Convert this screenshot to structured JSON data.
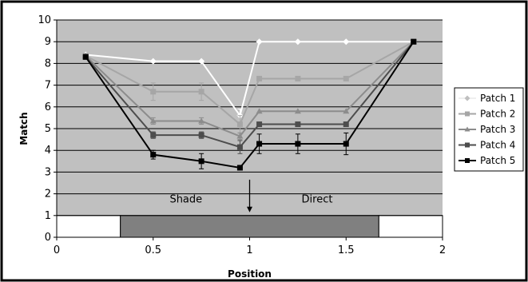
{
  "chart_data": {
    "type": "line",
    "title": "",
    "xlabel": "Position",
    "ylabel": "Match",
    "xlim": [
      0,
      2
    ],
    "ylim": [
      0,
      10
    ],
    "xticks": [
      0,
      0.5,
      1,
      1.5,
      2
    ],
    "xtick_labels": [
      "0",
      "0.5",
      "1",
      "1.5",
      "2"
    ],
    "yticks": [
      0,
      1,
      2,
      3,
      4,
      5,
      6,
      7,
      8,
      9,
      10
    ],
    "ytick_labels": [
      "0",
      "1",
      "2",
      "3",
      "4",
      "5",
      "6",
      "7",
      "8",
      "9",
      "10"
    ],
    "grid": true,
    "legend_position": "right",
    "series": [
      {
        "name": "Patch 1",
        "color": "#ffffff",
        "marker": "diamond",
        "points": [
          [
            0.15,
            8.4
          ],
          [
            0.5,
            8.1
          ],
          [
            0.75,
            8.1
          ],
          [
            0.95,
            5.6
          ],
          [
            1.05,
            9.0
          ],
          [
            1.25,
            9.0
          ],
          [
            1.5,
            9.0
          ],
          [
            1.85,
            9.0
          ]
        ],
        "errors": [
          0,
          0,
          0,
          0.3,
          0,
          0,
          0,
          0
        ]
      },
      {
        "name": "Patch 2",
        "color": "#a6a6a6",
        "marker": "square",
        "points": [
          [
            0.15,
            8.35
          ],
          [
            0.5,
            6.7
          ],
          [
            0.75,
            6.7
          ],
          [
            0.95,
            5.2
          ],
          [
            1.05,
            7.3
          ],
          [
            1.25,
            7.3
          ],
          [
            1.5,
            7.3
          ],
          [
            1.85,
            9.0
          ]
        ],
        "errors": [
          0,
          0.4,
          0.4,
          0.4,
          0,
          0,
          0,
          0
        ]
      },
      {
        "name": "Patch 3",
        "color": "#8c8c8c",
        "marker": "triangle",
        "points": [
          [
            0.15,
            8.35
          ],
          [
            0.5,
            5.35
          ],
          [
            0.75,
            5.35
          ],
          [
            0.95,
            4.65
          ],
          [
            1.05,
            5.8
          ],
          [
            1.25,
            5.8
          ],
          [
            1.5,
            5.8
          ],
          [
            1.85,
            9.0
          ]
        ],
        "errors": [
          0,
          0.15,
          0.15,
          0.15,
          0,
          0,
          0,
          0
        ]
      },
      {
        "name": "Patch 4",
        "color": "#4d4d4d",
        "marker": "square",
        "points": [
          [
            0.15,
            8.3
          ],
          [
            0.5,
            4.7
          ],
          [
            0.75,
            4.7
          ],
          [
            0.95,
            4.15
          ],
          [
            1.05,
            5.2
          ],
          [
            1.25,
            5.2
          ],
          [
            1.5,
            5.2
          ],
          [
            1.85,
            9.0
          ]
        ],
        "errors": [
          0,
          0.15,
          0.15,
          0.3,
          0,
          0,
          0,
          0
        ]
      },
      {
        "name": "Patch 5",
        "color": "#000000",
        "marker": "square",
        "points": [
          [
            0.15,
            8.3
          ],
          [
            0.5,
            3.8
          ],
          [
            0.75,
            3.5
          ],
          [
            0.95,
            3.2
          ],
          [
            1.05,
            4.3
          ],
          [
            1.25,
            4.3
          ],
          [
            1.5,
            4.3
          ],
          [
            1.85,
            9.0
          ]
        ],
        "errors": [
          0,
          0.2,
          0.35,
          0.1,
          0.45,
          0.45,
          0.5,
          0
        ]
      }
    ],
    "regions": [
      {
        "name": "white-left",
        "x": [
          0,
          0.33
        ],
        "y": [
          0,
          1
        ],
        "color": "#ffffff"
      },
      {
        "name": "shade-band",
        "x": [
          0.33,
          1.67
        ],
        "y": [
          0,
          1
        ],
        "color": "#808080"
      },
      {
        "name": "white-right",
        "x": [
          1.67,
          2
        ],
        "y": [
          0,
          1
        ],
        "color": "#ffffff"
      }
    ],
    "annotations": [
      {
        "text": "Shade",
        "x": 0.67,
        "y": 1.6
      },
      {
        "text": "Direct",
        "x": 1.35,
        "y": 1.6
      }
    ],
    "arrow": {
      "x": 1.0,
      "from_y": 2.65,
      "to_y": 1.15
    }
  }
}
